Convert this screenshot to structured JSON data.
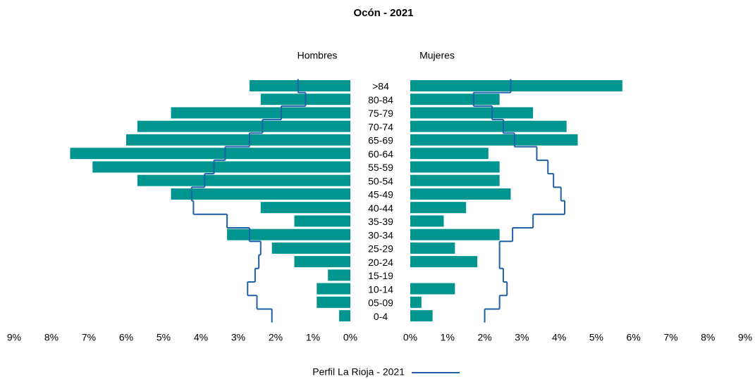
{
  "chart_data": {
    "type": "pyramid",
    "title": "Ocón - 2021",
    "categories": [
      ">84",
      "80-84",
      "75-79",
      "70-74",
      "65-69",
      "60-64",
      "55-59",
      "50-54",
      "45-49",
      "40-44",
      "35-39",
      "30-34",
      "25-29",
      "20-24",
      "15-19",
      "10-14",
      "05-09",
      "0-4"
    ],
    "series": [
      {
        "name": "Hombres",
        "color": "#00968f",
        "values": [
          2.7,
          2.4,
          4.8,
          5.7,
          6.0,
          7.5,
          6.9,
          5.7,
          4.8,
          2.4,
          1.5,
          3.3,
          2.1,
          1.5,
          0.6,
          0.9,
          0.9,
          0.3
        ]
      },
      {
        "name": "Mujeres",
        "color": "#00968f",
        "values": [
          5.7,
          2.4,
          3.3,
          4.2,
          4.5,
          2.1,
          2.4,
          2.4,
          2.7,
          1.5,
          0.9,
          2.4,
          1.2,
          1.8,
          0,
          1.2,
          0.3,
          0.6
        ]
      }
    ],
    "profile": {
      "name": "Perfil La Rioja - 2021",
      "color": "#1f5fa8",
      "hombres": [
        1.4,
        1.2,
        1.85,
        2.35,
        2.7,
        3.35,
        3.65,
        3.9,
        4.25,
        4.2,
        3.3,
        2.7,
        2.4,
        2.45,
        2.55,
        2.75,
        2.5,
        2.1
      ],
      "mujeres": [
        2.7,
        1.7,
        2.2,
        2.5,
        2.8,
        3.4,
        3.7,
        3.85,
        4.05,
        4.15,
        3.3,
        2.75,
        2.4,
        2.4,
        2.5,
        2.6,
        2.4,
        2.0
      ]
    },
    "xlim": [
      0,
      9
    ],
    "xticks": [
      {
        "value": 0,
        "label": "0%"
      },
      {
        "value": 1,
        "label": "1%"
      },
      {
        "value": 2,
        "label": "2%"
      },
      {
        "value": 3,
        "label": "3%"
      },
      {
        "value": 4,
        "label": "4%"
      },
      {
        "value": 5,
        "label": "5%"
      },
      {
        "value": 6,
        "label": "6%"
      },
      {
        "value": 7,
        "label": "7%"
      },
      {
        "value": 8,
        "label": "8%"
      },
      {
        "value": 9,
        "label": "9%"
      }
    ]
  }
}
